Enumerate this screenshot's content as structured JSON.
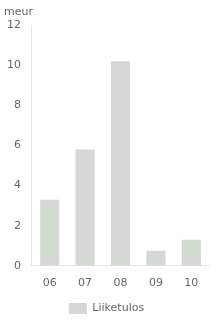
{
  "chart_data": {
    "type": "bar",
    "ylabel": "meur",
    "categories": [
      "06",
      "07",
      "08",
      "09",
      "10"
    ],
    "series": [
      {
        "name": "Liiketulos",
        "color": "#d4d9d4",
        "values": [
          3.3,
          5.8,
          10.2,
          0.75,
          1.3
        ]
      }
    ],
    "ylim": [
      0,
      12
    ],
    "yticks": [
      0,
      2,
      4,
      6,
      8,
      10,
      12
    ],
    "grid": false,
    "legend": "bottom"
  }
}
